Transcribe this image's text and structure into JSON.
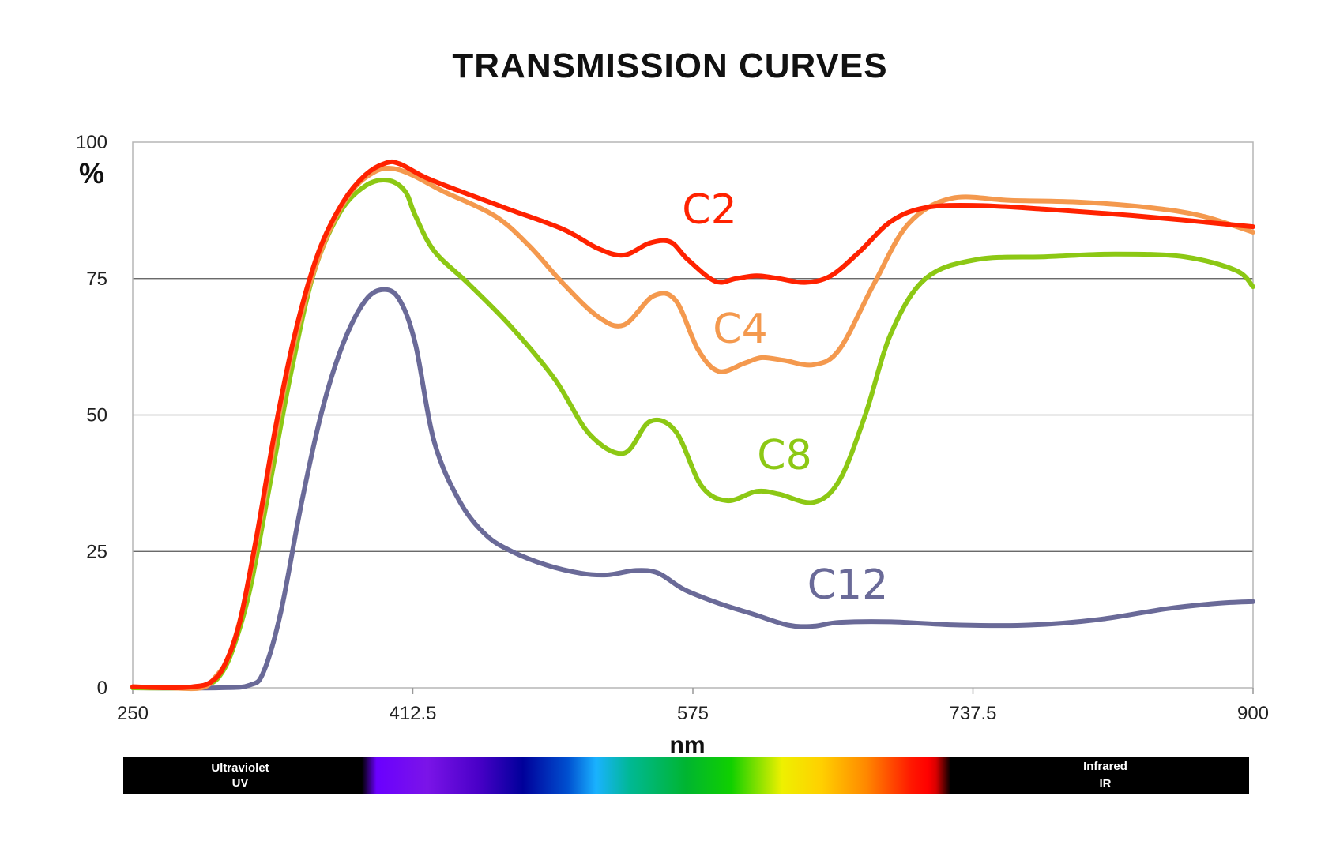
{
  "chart_data": {
    "type": "line",
    "title": "TRANSMISSION CURVES",
    "xlabel": "nm",
    "ylabel": "%",
    "xlim": [
      250,
      900
    ],
    "ylim": [
      0,
      100
    ],
    "x_ticks": [
      "250",
      "412.5",
      "575",
      "737.5",
      "900"
    ],
    "y_ticks": [
      "100",
      "75",
      "50",
      "25",
      "0"
    ],
    "gridlines_y": [
      25,
      50,
      75
    ],
    "series": [
      {
        "name": "C2",
        "color": "#ff2200",
        "points": [
          [
            250,
            0.2
          ],
          [
            270,
            0
          ],
          [
            285,
            0.2
          ],
          [
            295,
            1
          ],
          [
            303,
            4
          ],
          [
            312,
            12
          ],
          [
            322,
            28
          ],
          [
            333,
            48
          ],
          [
            345,
            66
          ],
          [
            358,
            80
          ],
          [
            372,
            89
          ],
          [
            385,
            94
          ],
          [
            397,
            96.2
          ],
          [
            405,
            96
          ],
          [
            420,
            93.5
          ],
          [
            440,
            91
          ],
          [
            470,
            87.5
          ],
          [
            500,
            84
          ],
          [
            520,
            80.5
          ],
          [
            535,
            79.3
          ],
          [
            550,
            81.5
          ],
          [
            562,
            81.7
          ],
          [
            572,
            78.5
          ],
          [
            588,
            74.5
          ],
          [
            600,
            75
          ],
          [
            612,
            75.5
          ],
          [
            625,
            75
          ],
          [
            640,
            74.3
          ],
          [
            655,
            75.5
          ],
          [
            672,
            80
          ],
          [
            690,
            85.5
          ],
          [
            710,
            88
          ],
          [
            740,
            88.4
          ],
          [
            780,
            87.7
          ],
          [
            820,
            86.8
          ],
          [
            860,
            85.7
          ],
          [
            900,
            84.5
          ]
        ]
      },
      {
        "name": "C4",
        "color": "#f4994e",
        "points": [
          [
            250,
            0.2
          ],
          [
            270,
            0
          ],
          [
            290,
            0
          ],
          [
            298,
            2
          ],
          [
            306,
            6
          ],
          [
            315,
            16
          ],
          [
            326,
            34
          ],
          [
            338,
            55
          ],
          [
            350,
            71
          ],
          [
            363,
            83
          ],
          [
            377,
            91
          ],
          [
            390,
            94.5
          ],
          [
            400,
            95.2
          ],
          [
            412,
            94
          ],
          [
            430,
            91
          ],
          [
            460,
            86.5
          ],
          [
            480,
            81
          ],
          [
            500,
            74
          ],
          [
            520,
            68
          ],
          [
            535,
            66.5
          ],
          [
            552,
            71.8
          ],
          [
            565,
            71
          ],
          [
            578,
            62
          ],
          [
            590,
            58
          ],
          [
            605,
            59.5
          ],
          [
            615,
            60.5
          ],
          [
            628,
            60
          ],
          [
            645,
            59.2
          ],
          [
            660,
            62
          ],
          [
            680,
            74
          ],
          [
            700,
            85
          ],
          [
            725,
            89.7
          ],
          [
            760,
            89.3
          ],
          [
            800,
            89
          ],
          [
            840,
            88
          ],
          [
            870,
            86.5
          ],
          [
            900,
            83.5
          ]
        ]
      },
      {
        "name": "C8",
        "color": "#8cc814",
        "points": [
          [
            250,
            0
          ],
          [
            280,
            0
          ],
          [
            292,
            0.5
          ],
          [
            300,
            2
          ],
          [
            308,
            7
          ],
          [
            318,
            18
          ],
          [
            330,
            38
          ],
          [
            342,
            58
          ],
          [
            355,
            76
          ],
          [
            370,
            87
          ],
          [
            385,
            92
          ],
          [
            398,
            93
          ],
          [
            408,
            91
          ],
          [
            414,
            86.5
          ],
          [
            425,
            80
          ],
          [
            445,
            74
          ],
          [
            470,
            66
          ],
          [
            495,
            56.5
          ],
          [
            515,
            46.5
          ],
          [
            535,
            43
          ],
          [
            550,
            48.8
          ],
          [
            565,
            47
          ],
          [
            580,
            37
          ],
          [
            595,
            34.3
          ],
          [
            612,
            36
          ],
          [
            625,
            35.5
          ],
          [
            645,
            34
          ],
          [
            660,
            38
          ],
          [
            675,
            50
          ],
          [
            690,
            65
          ],
          [
            710,
            75
          ],
          [
            740,
            78.5
          ],
          [
            780,
            79
          ],
          [
            820,
            79.5
          ],
          [
            860,
            79
          ],
          [
            890,
            76.5
          ],
          [
            900,
            73.5
          ]
        ]
      },
      {
        "name": "C12",
        "color": "#6a6a98",
        "points": [
          [
            250,
            0
          ],
          [
            300,
            0
          ],
          [
            318,
            0.5
          ],
          [
            326,
            3
          ],
          [
            336,
            14
          ],
          [
            348,
            34
          ],
          [
            360,
            51
          ],
          [
            372,
            63
          ],
          [
            385,
            71
          ],
          [
            396,
            73
          ],
          [
            405,
            71
          ],
          [
            414,
            63
          ],
          [
            425,
            45
          ],
          [
            440,
            34
          ],
          [
            455,
            28
          ],
          [
            470,
            25
          ],
          [
            490,
            22.5
          ],
          [
            510,
            21
          ],
          [
            525,
            20.7
          ],
          [
            542,
            21.5
          ],
          [
            555,
            21
          ],
          [
            570,
            18
          ],
          [
            590,
            15.5
          ],
          [
            610,
            13.5
          ],
          [
            630,
            11.5
          ],
          [
            645,
            11.3
          ],
          [
            660,
            12
          ],
          [
            690,
            12.1
          ],
          [
            730,
            11.5
          ],
          [
            770,
            11.5
          ],
          [
            810,
            12.5
          ],
          [
            850,
            14.5
          ],
          [
            880,
            15.5
          ],
          [
            900,
            15.8
          ]
        ]
      }
    ],
    "annotations": [
      "C2",
      "C4",
      "C8",
      "C12"
    ],
    "spectrum_bar": {
      "left_label_1": "Ultraviolet",
      "left_label_2": "UV",
      "right_label_1": "Infrared",
      "right_label_2": "IR"
    }
  }
}
